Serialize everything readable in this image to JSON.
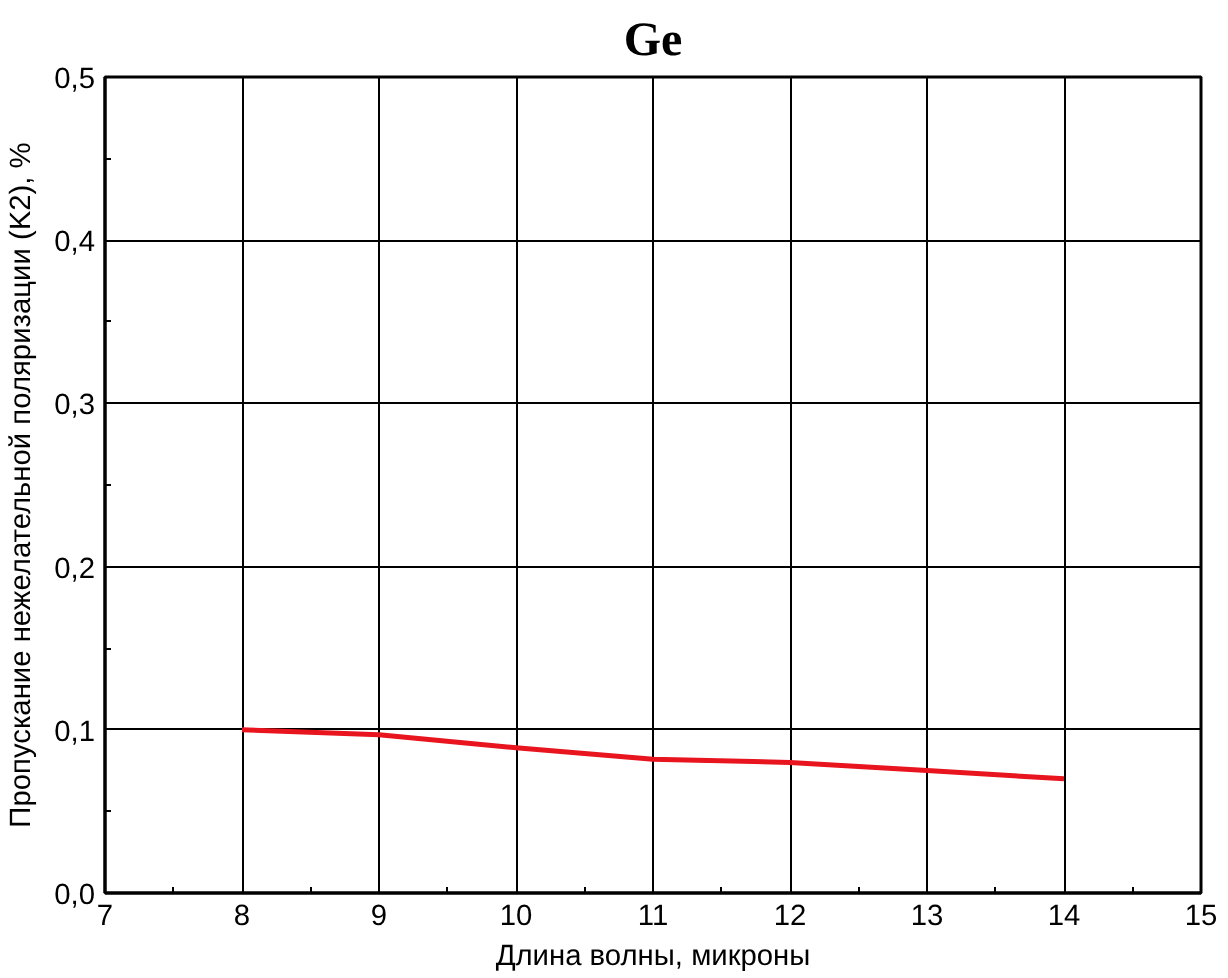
{
  "chart_data": {
    "type": "line",
    "title": "Ge",
    "xlabel": "Длина волны, микроны",
    "ylabel": "Пропускание нежелательной поляризации (K2), %",
    "x": [
      8,
      9,
      10,
      11,
      12,
      13,
      14
    ],
    "series": [
      {
        "color": "#e8141e",
        "values": [
          0.1,
          0.097,
          0.089,
          0.082,
          0.08,
          0.075,
          0.07
        ]
      }
    ],
    "xlim": [
      7,
      15
    ],
    "xticks": [
      7,
      8,
      9,
      10,
      11,
      12,
      13,
      14,
      15
    ],
    "ylim": [
      0,
      0.5
    ],
    "yticks": [
      {
        "value": 0,
        "label": "0,0"
      },
      {
        "value": 0.1,
        "label": "0,1"
      },
      {
        "value": 0.2,
        "label": "0,2"
      },
      {
        "value": 0.3,
        "label": "0,3"
      },
      {
        "value": 0.4,
        "label": "0,4"
      },
      {
        "value": 0.5,
        "label": "0,5"
      }
    ],
    "grid": true,
    "marker": "none",
    "line_style": "solid"
  }
}
